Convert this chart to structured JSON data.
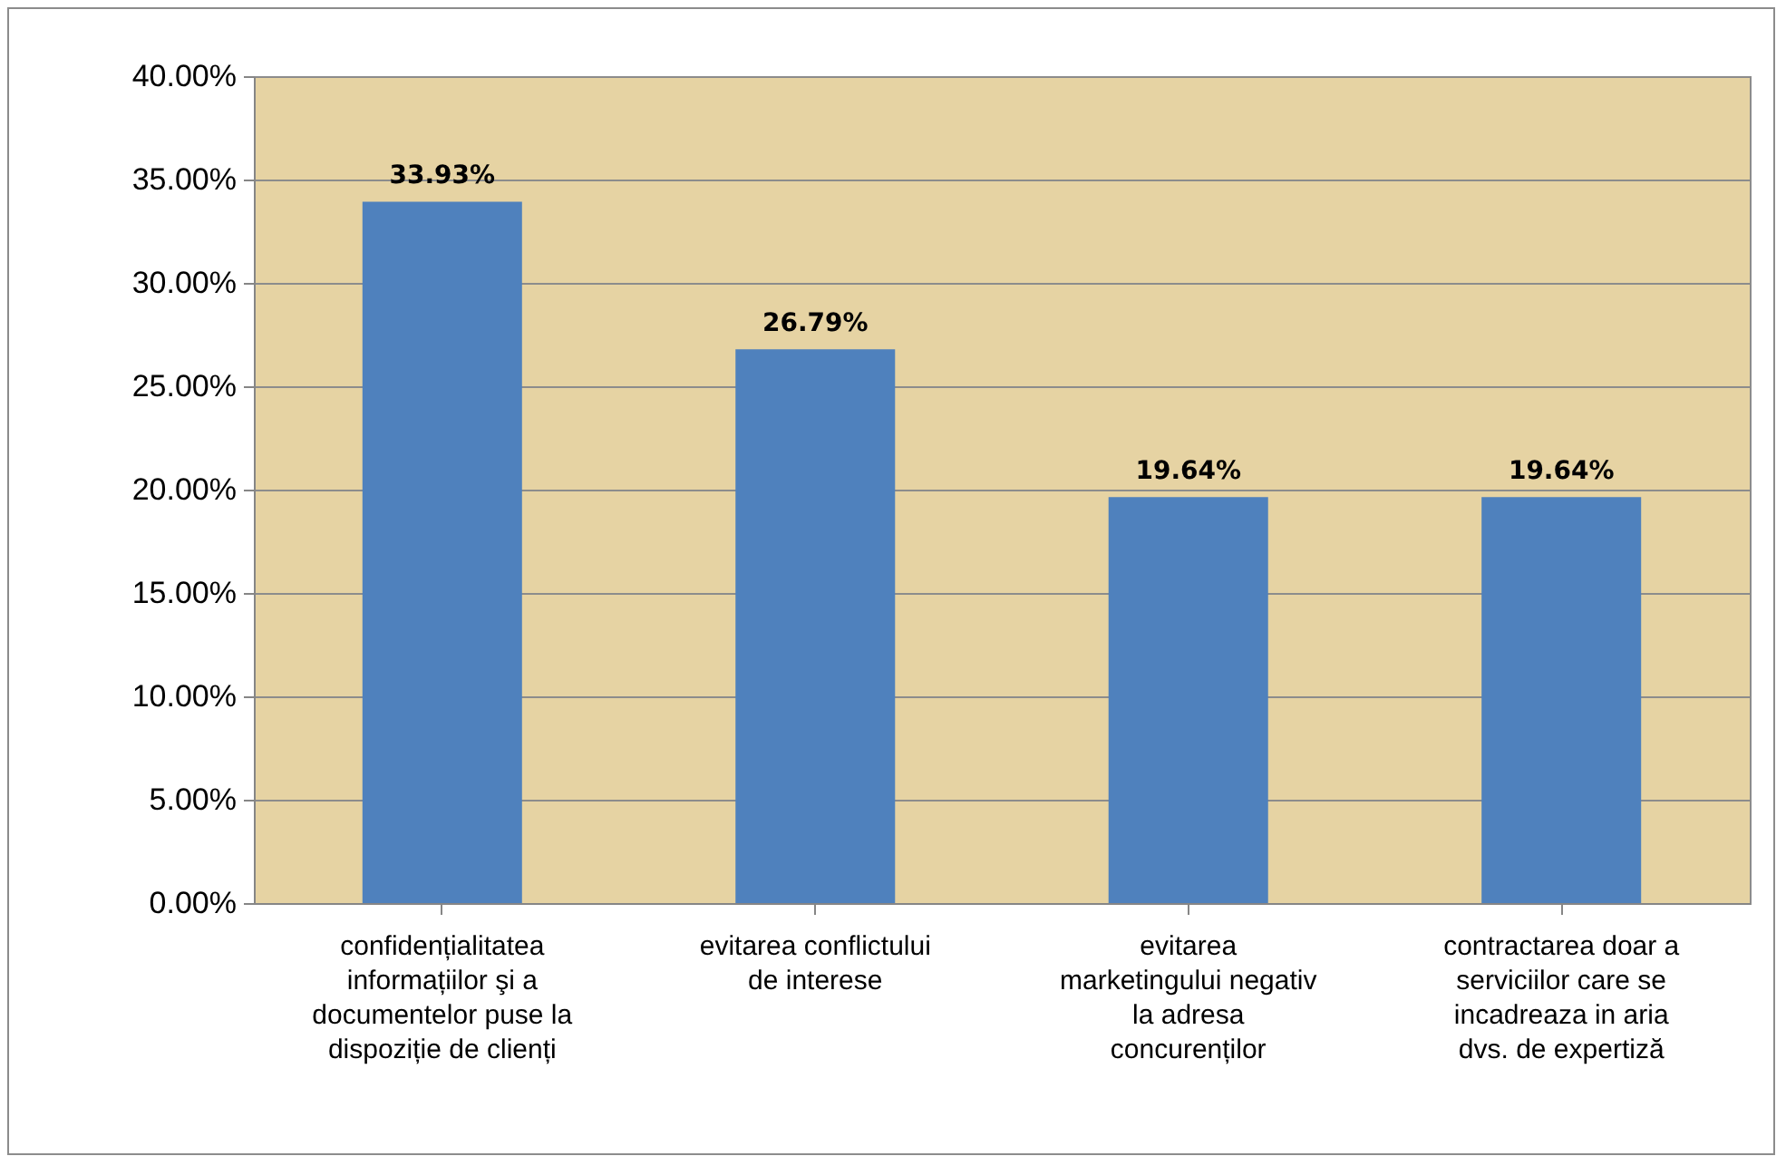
{
  "chart_data": {
    "type": "bar",
    "categories": [
      "confidențialitatea informațiilor şi a documentelor puse la dispoziție de clienți",
      "evitarea conflictului de interese",
      "evitarea marketingului negativ la adresa concurenților",
      "contractarea doar a serviciilor care se incadreaza in aria dvs. de expertiză"
    ],
    "values": [
      33.93,
      26.79,
      19.64,
      19.64
    ],
    "value_labels": [
      "33.93%",
      "26.79%",
      "19.64%",
      "19.64%"
    ],
    "color": "#4f81bd",
    "ylim": [
      0,
      40
    ],
    "yticks": [
      {
        "value": 0,
        "label": "0.00%"
      },
      {
        "value": 5,
        "label": "5.00%"
      },
      {
        "value": 10,
        "label": "10.00%"
      },
      {
        "value": 15,
        "label": "15.00%"
      },
      {
        "value": 20,
        "label": "20.00%"
      },
      {
        "value": 25,
        "label": "25.00%"
      },
      {
        "value": 30,
        "label": "30.00%"
      },
      {
        "value": 35,
        "label": "35.00%"
      },
      {
        "value": 40,
        "label": "40.00%"
      }
    ],
    "grid": "y"
  }
}
